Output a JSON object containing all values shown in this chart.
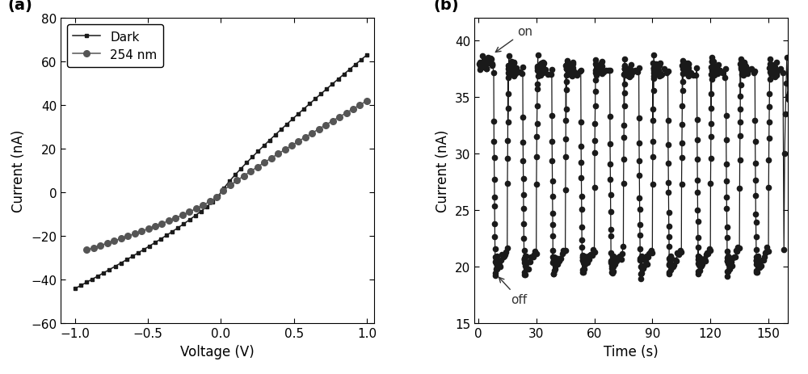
{
  "panel_a": {
    "label": "(a)",
    "xlabel": "Voltage (V)",
    "ylabel": "Current (nA)",
    "xlim": [
      -1.1,
      1.05
    ],
    "ylim": [
      -60,
      80
    ],
    "yticks": [
      -60,
      -40,
      -20,
      0,
      20,
      40,
      60,
      80
    ],
    "xticks": [
      -1.0,
      -0.5,
      0.0,
      0.5,
      1.0
    ],
    "dark_color": "#1a1a1a",
    "uv_color": "#555555",
    "legend": [
      "Dark",
      "254 nm"
    ]
  },
  "panel_b": {
    "label": "(b)",
    "xlabel": "Time (s)",
    "ylabel": "Current (nA)",
    "xlim": [
      -2,
      160
    ],
    "ylim": [
      15,
      42
    ],
    "yticks": [
      15,
      20,
      25,
      30,
      35,
      40
    ],
    "xticks": [
      0,
      30,
      60,
      90,
      120,
      150
    ],
    "color": "#1a1a1a",
    "on_label": "on",
    "off_label": "off"
  }
}
